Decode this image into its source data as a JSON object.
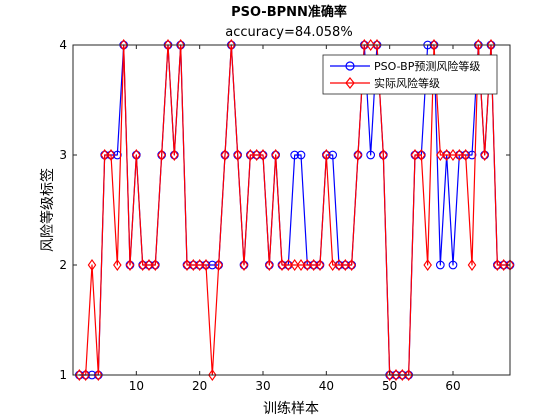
{
  "chart_data": {
    "type": "line",
    "title": "PSO-BPNN准确率",
    "subtitle": "accuracy=84.058%",
    "xlabel": "训练样本",
    "ylabel": "风险等级标签",
    "xlim": [
      0,
      69
    ],
    "ylim": [
      1,
      4
    ],
    "xticks": [
      10,
      20,
      30,
      40,
      50,
      60
    ],
    "yticks": [
      1,
      2,
      3,
      4
    ],
    "legend_position": "top-right",
    "grid": false,
    "x": [
      1,
      2,
      3,
      4,
      5,
      6,
      7,
      8,
      9,
      10,
      11,
      12,
      13,
      14,
      15,
      16,
      17,
      18,
      19,
      20,
      21,
      22,
      23,
      24,
      25,
      26,
      27,
      28,
      29,
      30,
      31,
      32,
      33,
      34,
      35,
      36,
      37,
      38,
      39,
      40,
      41,
      42,
      43,
      44,
      45,
      46,
      47,
      48,
      49,
      50,
      51,
      52,
      53,
      54,
      55,
      56,
      57,
      58,
      59,
      60,
      61,
      62,
      63,
      64,
      65,
      66,
      67,
      68,
      69
    ],
    "series": [
      {
        "name": "PSO-BP预测风险等级",
        "color": "#0000ff",
        "marker": "circle",
        "values": [
          1,
          1,
          1,
          1,
          3,
          3,
          3,
          4,
          2,
          3,
          2,
          2,
          2,
          3,
          4,
          3,
          4,
          2,
          2,
          2,
          2,
          2,
          2,
          3,
          4,
          3,
          2,
          3,
          3,
          3,
          2,
          3,
          2,
          2,
          3,
          3,
          2,
          2,
          2,
          3,
          3,
          2,
          2,
          2,
          3,
          4,
          3,
          4,
          3,
          1,
          1,
          1,
          1,
          3,
          3,
          4,
          4,
          2,
          3,
          2,
          3,
          3,
          3,
          4,
          3,
          4,
          2,
          2,
          2
        ]
      },
      {
        "name": "实际风险等级",
        "color": "#ff0000",
        "marker": "diamond",
        "values": [
          1,
          1,
          2,
          1,
          3,
          3,
          2,
          4,
          2,
          3,
          2,
          2,
          2,
          3,
          4,
          3,
          4,
          2,
          2,
          2,
          2,
          1,
          2,
          3,
          4,
          3,
          2,
          3,
          3,
          3,
          2,
          3,
          2,
          2,
          2,
          2,
          2,
          2,
          2,
          3,
          2,
          2,
          2,
          2,
          3,
          4,
          4,
          4,
          3,
          1,
          1,
          1,
          1,
          3,
          3,
          2,
          4,
          3,
          3,
          3,
          3,
          3,
          2,
          4,
          3,
          4,
          2,
          2,
          2
        ]
      }
    ]
  }
}
